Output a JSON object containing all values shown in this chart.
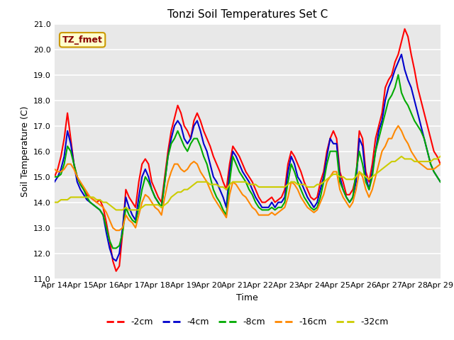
{
  "title": "Tonzi Soil Temperatures Set C",
  "xlabel": "Time",
  "ylabel": "Soil Temperature (C)",
  "ylim": [
    11.0,
    21.0
  ],
  "yticks": [
    11.0,
    12.0,
    13.0,
    14.0,
    15.0,
    16.0,
    17.0,
    18.0,
    19.0,
    20.0,
    21.0
  ],
  "x_tick_labels": [
    "Apr 14",
    "Apr 15",
    "Apr 16",
    "Apr 17",
    "Apr 18",
    "Apr 19",
    "Apr 20",
    "Apr 21",
    "Apr 22",
    "Apr 23",
    "Apr 24",
    "Apr 25",
    "Apr 26",
    "Apr 27",
    "Apr 28",
    "Apr 29"
  ],
  "annotation_text": "TZ_fmet",
  "annotation_bg": "#ffffcc",
  "annotation_border": "#cc9900",
  "annotation_text_color": "#880000",
  "bg_color": "#e8e8e8",
  "plot_bg": "#e8e8e8",
  "series": {
    "-2cm": {
      "color": "#ff0000",
      "linewidth": 1.5
    },
    "-4cm": {
      "color": "#0000cc",
      "linewidth": 1.5
    },
    "-8cm": {
      "color": "#00aa00",
      "linewidth": 1.5
    },
    "-16cm": {
      "color": "#ff8800",
      "linewidth": 1.5
    },
    "-32cm": {
      "color": "#cccc00",
      "linewidth": 1.5
    }
  },
  "data_2cm": [
    15.0,
    15.3,
    15.8,
    16.5,
    17.5,
    16.5,
    15.5,
    15.0,
    14.7,
    14.5,
    14.3,
    14.2,
    14.1,
    14.0,
    14.1,
    13.8,
    13.2,
    12.5,
    11.7,
    11.3,
    11.5,
    12.8,
    14.5,
    14.2,
    14.0,
    13.8,
    14.8,
    15.5,
    15.7,
    15.5,
    14.8,
    14.5,
    14.2,
    14.0,
    15.0,
    16.0,
    16.8,
    17.3,
    17.8,
    17.5,
    17.0,
    16.8,
    16.5,
    17.2,
    17.5,
    17.2,
    16.8,
    16.5,
    16.2,
    15.8,
    15.5,
    15.2,
    14.8,
    14.5,
    15.5,
    16.2,
    16.0,
    15.8,
    15.5,
    15.2,
    15.0,
    14.8,
    14.5,
    14.2,
    14.0,
    14.0,
    14.1,
    14.2,
    14.0,
    14.1,
    14.2,
    14.5,
    15.5,
    16.0,
    15.8,
    15.5,
    15.2,
    14.8,
    14.5,
    14.2,
    14.1,
    14.2,
    14.8,
    15.2,
    16.0,
    16.5,
    16.8,
    16.5,
    15.2,
    14.8,
    14.3,
    14.3,
    14.5,
    15.0,
    16.8,
    16.5,
    15.2,
    14.8,
    15.5,
    16.5,
    17.0,
    17.5,
    18.5,
    18.8,
    19.0,
    19.5,
    19.8,
    20.3,
    20.8,
    20.5,
    19.8,
    19.2,
    18.5,
    18.0,
    17.5,
    17.0,
    16.5,
    16.0,
    15.8,
    15.5
  ],
  "data_4cm": [
    14.8,
    15.0,
    15.3,
    15.8,
    16.8,
    16.3,
    15.5,
    14.8,
    14.5,
    14.3,
    14.1,
    14.0,
    13.9,
    13.8,
    13.7,
    13.5,
    12.8,
    12.2,
    11.8,
    11.7,
    12.0,
    13.0,
    14.2,
    13.8,
    13.5,
    13.3,
    14.2,
    15.0,
    15.3,
    15.0,
    14.5,
    14.2,
    14.0,
    13.8,
    14.8,
    15.8,
    16.5,
    17.0,
    17.2,
    17.0,
    16.5,
    16.3,
    16.5,
    17.0,
    17.2,
    16.8,
    16.3,
    16.0,
    15.5,
    15.0,
    14.8,
    14.5,
    14.2,
    13.8,
    15.2,
    16.0,
    15.8,
    15.5,
    15.2,
    15.0,
    14.8,
    14.5,
    14.2,
    14.0,
    13.8,
    13.8,
    13.8,
    14.0,
    13.8,
    14.0,
    14.0,
    14.2,
    15.2,
    15.8,
    15.5,
    15.0,
    14.8,
    14.5,
    14.2,
    14.0,
    13.8,
    14.0,
    14.5,
    15.0,
    15.8,
    16.5,
    16.3,
    16.3,
    15.0,
    14.5,
    14.2,
    14.0,
    14.2,
    14.8,
    16.5,
    16.2,
    15.0,
    14.5,
    15.2,
    16.0,
    16.8,
    17.2,
    18.0,
    18.5,
    18.8,
    19.2,
    19.5,
    19.8,
    19.2,
    18.8,
    18.5,
    18.0,
    17.5,
    17.0,
    16.5,
    16.0,
    15.5,
    15.2,
    15.0,
    14.8
  ],
  "data_8cm": [
    15.0,
    15.0,
    15.1,
    15.5,
    16.2,
    16.0,
    15.5,
    15.0,
    14.7,
    14.5,
    14.2,
    14.0,
    13.9,
    13.8,
    13.7,
    13.5,
    13.0,
    12.5,
    12.2,
    12.2,
    12.3,
    12.8,
    13.8,
    13.5,
    13.3,
    13.2,
    13.8,
    14.5,
    15.0,
    14.8,
    14.5,
    14.2,
    14.0,
    13.8,
    14.8,
    15.8,
    16.3,
    16.5,
    16.8,
    16.5,
    16.2,
    16.0,
    16.3,
    16.5,
    16.5,
    16.2,
    15.8,
    15.5,
    15.0,
    14.5,
    14.2,
    14.0,
    13.7,
    13.5,
    14.8,
    15.8,
    15.5,
    15.2,
    15.0,
    14.8,
    14.5,
    14.3,
    14.0,
    13.8,
    13.7,
    13.7,
    13.7,
    13.8,
    13.7,
    13.8,
    13.8,
    14.0,
    14.8,
    15.5,
    15.2,
    14.8,
    14.5,
    14.2,
    14.0,
    13.8,
    13.7,
    13.8,
    14.2,
    14.8,
    15.5,
    16.0,
    16.0,
    16.0,
    14.8,
    14.5,
    14.2,
    14.0,
    14.2,
    15.2,
    16.0,
    15.5,
    14.8,
    14.5,
    15.0,
    16.0,
    16.5,
    17.0,
    17.5,
    18.0,
    18.2,
    18.5,
    19.0,
    18.3,
    18.0,
    17.8,
    17.5,
    17.2,
    17.0,
    16.8,
    16.5,
    16.0,
    15.5,
    15.2,
    15.0,
    14.8
  ],
  "data_16cm": [
    15.3,
    15.2,
    15.2,
    15.3,
    15.5,
    15.5,
    15.3,
    15.0,
    14.8,
    14.6,
    14.4,
    14.2,
    14.1,
    14.0,
    13.9,
    13.8,
    13.6,
    13.3,
    13.0,
    12.9,
    12.9,
    13.0,
    13.5,
    13.3,
    13.2,
    13.0,
    13.5,
    14.0,
    14.3,
    14.2,
    14.0,
    13.8,
    13.7,
    13.5,
    14.2,
    14.8,
    15.2,
    15.5,
    15.5,
    15.3,
    15.2,
    15.3,
    15.5,
    15.6,
    15.5,
    15.2,
    15.0,
    14.8,
    14.5,
    14.2,
    14.0,
    13.8,
    13.6,
    13.4,
    14.3,
    14.8,
    14.7,
    14.5,
    14.3,
    14.2,
    14.0,
    13.8,
    13.7,
    13.5,
    13.5,
    13.5,
    13.5,
    13.6,
    13.5,
    13.6,
    13.7,
    13.8,
    14.2,
    14.8,
    14.7,
    14.5,
    14.2,
    14.0,
    13.8,
    13.7,
    13.6,
    13.7,
    14.0,
    14.3,
    14.8,
    15.0,
    15.2,
    15.2,
    14.5,
    14.2,
    14.0,
    13.8,
    14.0,
    14.5,
    15.2,
    15.0,
    14.5,
    14.2,
    14.5,
    15.0,
    15.5,
    16.0,
    16.2,
    16.5,
    16.5,
    16.8,
    17.0,
    16.8,
    16.5,
    16.3,
    16.0,
    15.8,
    15.6,
    15.5,
    15.4,
    15.3,
    15.3,
    15.3,
    15.4,
    15.5
  ],
  "data_32cm": [
    14.0,
    14.0,
    14.1,
    14.1,
    14.1,
    14.2,
    14.2,
    14.2,
    14.2,
    14.2,
    14.2,
    14.2,
    14.2,
    14.1,
    14.1,
    14.0,
    14.0,
    13.9,
    13.8,
    13.7,
    13.7,
    13.7,
    13.8,
    13.7,
    13.7,
    13.7,
    13.7,
    13.8,
    13.9,
    13.9,
    13.9,
    13.9,
    13.9,
    13.8,
    13.9,
    14.0,
    14.2,
    14.3,
    14.4,
    14.4,
    14.5,
    14.5,
    14.6,
    14.7,
    14.8,
    14.8,
    14.8,
    14.8,
    14.7,
    14.7,
    14.7,
    14.6,
    14.6,
    14.5,
    14.7,
    14.8,
    14.8,
    14.8,
    14.8,
    14.8,
    14.7,
    14.7,
    14.7,
    14.6,
    14.6,
    14.6,
    14.6,
    14.6,
    14.6,
    14.6,
    14.6,
    14.6,
    14.7,
    14.8,
    14.8,
    14.7,
    14.7,
    14.7,
    14.6,
    14.6,
    14.6,
    14.7,
    14.7,
    14.8,
    14.9,
    15.0,
    15.1,
    15.1,
    15.0,
    15.0,
    14.9,
    14.9,
    14.9,
    15.0,
    15.2,
    15.1,
    15.0,
    14.9,
    15.0,
    15.1,
    15.2,
    15.3,
    15.4,
    15.5,
    15.6,
    15.6,
    15.7,
    15.8,
    15.7,
    15.7,
    15.7,
    15.6,
    15.6,
    15.6,
    15.6,
    15.6,
    15.6,
    15.7,
    15.7,
    15.8
  ]
}
